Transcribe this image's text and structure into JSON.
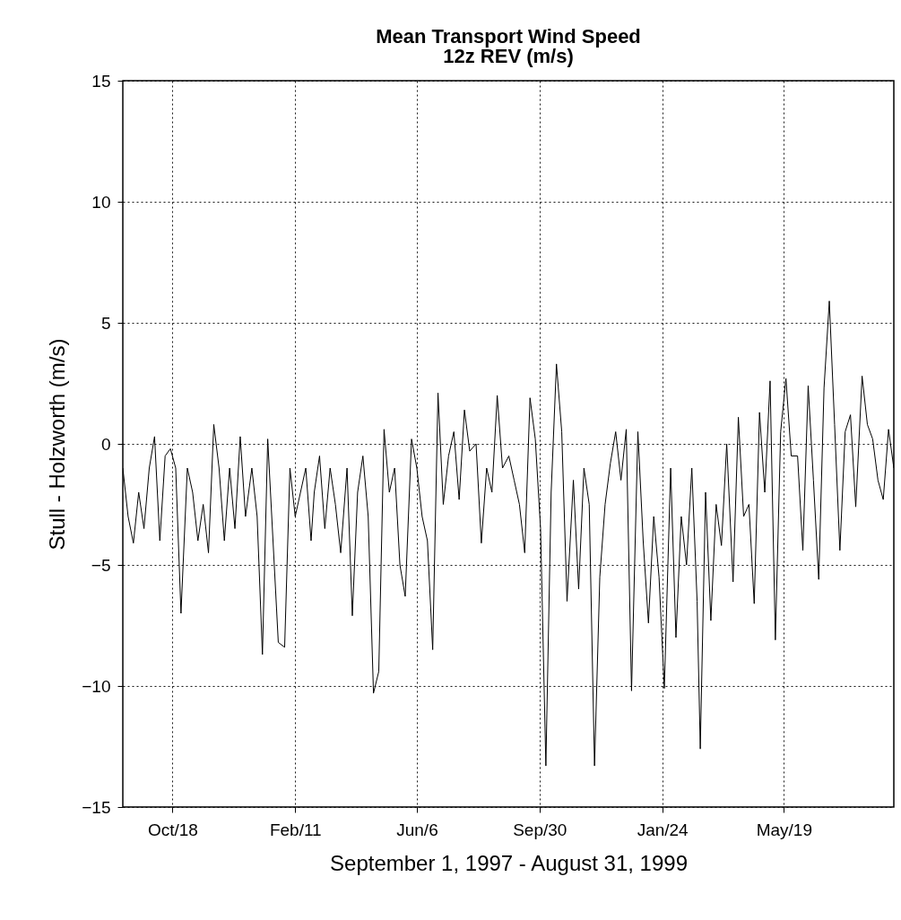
{
  "chart_data": {
    "type": "line",
    "title": "Mean Transport Wind Speed",
    "subtitle": "12z REV (m/s)",
    "xlabel": "September 1, 1997 - August 31, 1999",
    "ylabel": "Stull - Holzworth (m/s)",
    "x": [
      "1997-09-01",
      "1997-09-06",
      "1997-09-11",
      "1997-09-16",
      "1997-09-21",
      "1997-09-26",
      "1997-10-01",
      "1997-10-06",
      "1997-10-11",
      "1997-10-16",
      "1997-10-21",
      "1997-10-26",
      "1997-11-01",
      "1997-11-06",
      "1997-11-11",
      "1997-11-16",
      "1997-11-21",
      "1997-11-26",
      "1997-12-01",
      "1997-12-06",
      "1997-12-11",
      "1997-12-16",
      "1997-12-21",
      "1997-12-26",
      "1998-01-01",
      "1998-01-06",
      "1998-01-11",
      "1998-01-16",
      "1998-01-21",
      "1998-01-26",
      "1998-02-01",
      "1998-02-06",
      "1998-02-11",
      "1998-02-16",
      "1998-02-21",
      "1998-02-26",
      "1998-03-01",
      "1998-03-06",
      "1998-03-11",
      "1998-03-16",
      "1998-03-21",
      "1998-03-26",
      "1998-04-01",
      "1998-04-06",
      "1998-04-11",
      "1998-04-16",
      "1998-04-21",
      "1998-04-26",
      "1998-05-01",
      "1998-05-06",
      "1998-05-11",
      "1998-05-16",
      "1998-05-21",
      "1998-05-26",
      "1998-06-01",
      "1998-06-06",
      "1998-06-11",
      "1998-06-16",
      "1998-06-21",
      "1998-06-26",
      "1998-07-01",
      "1998-07-06",
      "1998-07-11",
      "1998-07-16",
      "1998-07-21",
      "1998-07-26",
      "1998-08-01",
      "1998-08-06",
      "1998-08-11",
      "1998-08-16",
      "1998-08-21",
      "1998-08-26",
      "1998-09-01",
      "1998-09-06",
      "1998-09-11",
      "1998-09-16",
      "1998-09-21",
      "1998-09-26",
      "1998-10-01",
      "1998-10-06",
      "1998-10-11",
      "1998-10-16",
      "1998-10-21",
      "1998-10-26",
      "1998-11-01",
      "1998-11-06",
      "1998-11-11",
      "1998-11-16",
      "1998-11-21",
      "1998-11-26",
      "1998-12-01",
      "1998-12-06",
      "1998-12-11",
      "1998-12-16",
      "1998-12-21",
      "1998-12-26",
      "1999-01-01",
      "1999-01-06",
      "1999-01-11",
      "1999-01-16",
      "1999-01-21",
      "1999-01-26",
      "1999-02-01",
      "1999-02-06",
      "1999-02-11",
      "1999-02-16",
      "1999-02-21",
      "1999-02-26",
      "1999-03-01",
      "1999-03-06",
      "1999-03-11",
      "1999-03-16",
      "1999-03-21",
      "1999-03-26",
      "1999-04-01",
      "1999-04-06",
      "1999-04-11",
      "1999-04-16",
      "1999-04-21",
      "1999-04-26",
      "1999-05-01",
      "1999-05-06",
      "1999-05-11",
      "1999-05-16",
      "1999-05-21",
      "1999-05-26",
      "1999-06-01",
      "1999-06-06",
      "1999-06-11",
      "1999-06-16",
      "1999-06-21",
      "1999-06-26",
      "1999-07-01",
      "1999-07-06",
      "1999-07-11",
      "1999-07-16",
      "1999-07-21",
      "1999-07-26",
      "1999-08-01",
      "1999-08-06",
      "1999-08-11",
      "1999-08-16",
      "1999-08-21",
      "1999-08-26",
      "1999-08-31"
    ],
    "series": [
      {
        "color": "#000000",
        "values": [
          -1,
          -3,
          -4.1,
          -2,
          -3.5,
          -1,
          0.3,
          -4,
          -0.5,
          -0.2,
          -1,
          -7,
          -1,
          -2,
          -4,
          -2.5,
          -4.5,
          0.8,
          -1,
          -4,
          -1,
          -3.5,
          0.3,
          -3,
          -1,
          -3,
          -8.7,
          0.2,
          -4,
          -8.2,
          -8.4,
          -1,
          -3,
          -2,
          -1,
          -4,
          -2,
          -0.5,
          -3.5,
          -1,
          -2.5,
          -4.5,
          -1,
          -7.1,
          -2,
          -0.5,
          -3,
          -10.3,
          -9.4,
          0.6,
          -2,
          -1,
          -5,
          -6.3,
          0.2,
          -1,
          -3,
          -4,
          -8.5,
          2.1,
          -2.5,
          -0.5,
          0.5,
          -2.3,
          1.4,
          -0.3,
          0,
          -4.1,
          -1,
          -2,
          2,
          -1,
          -0.5,
          -1.5,
          -2.5,
          -4.5,
          1.9,
          0.2,
          -3.5,
          -13.3,
          -2,
          3.3,
          0.5,
          -6.5,
          -1.5,
          -6,
          -1,
          -2.5,
          -13.3,
          -5.5,
          -2.5,
          -0.8,
          0.5,
          -1.5,
          0.6,
          -10.2,
          0.5,
          -4,
          -7.4,
          -3,
          -5.5,
          -10.1,
          -1,
          -8,
          -3,
          -5,
          -1,
          -6.5,
          -12.6,
          -2,
          -7.3,
          -2.5,
          -4.2,
          0,
          -5.7,
          1.1,
          -3,
          -2.5,
          -6.6,
          1.3,
          -2,
          2.6,
          -8.1,
          0.5,
          2.7,
          -0.5,
          -0.5,
          -4.4,
          2.4,
          -1.5,
          -5.6,
          2.3,
          5.9,
          0.8,
          -4.4,
          0.5,
          1.2,
          -2.6,
          2.8,
          0.8,
          0.2,
          -1.5,
          -2.3,
          0.6,
          -1
        ]
      }
    ],
    "xlim": [
      "1997-09-01",
      "1999-08-31"
    ],
    "xticks": [
      {
        "value": "1997-10-18",
        "label": "Oct/18"
      },
      {
        "value": "1998-02-11",
        "label": "Feb/11"
      },
      {
        "value": "1998-06-06",
        "label": "Jun/6"
      },
      {
        "value": "1998-09-30",
        "label": "Sep/30"
      },
      {
        "value": "1999-01-24",
        "label": "Jan/24"
      },
      {
        "value": "1999-05-19",
        "label": "May/19"
      }
    ],
    "ylim": [
      -15,
      15
    ],
    "yticks": [
      -15,
      -10,
      -5,
      0,
      5,
      10,
      15
    ],
    "grid": true,
    "line_style": "solid",
    "marker": "none"
  }
}
